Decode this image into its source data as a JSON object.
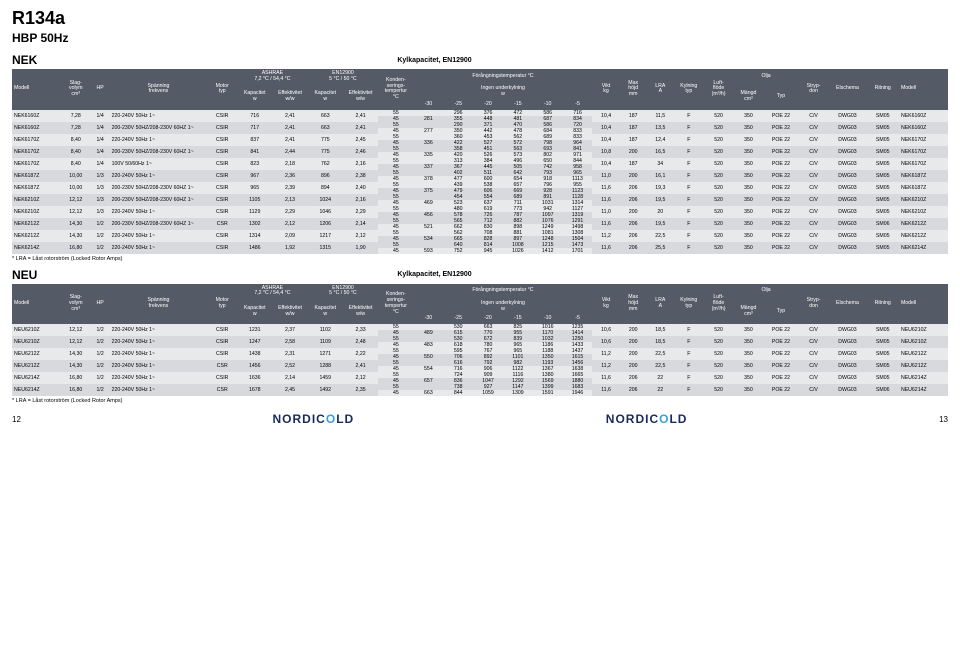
{
  "title": "R134a",
  "subtitle": "HBP 50Hz",
  "kylcap_label": "Kylkapacitet, EN12900",
  "footnote": "* LRA = Låst rotorström (Locked Rotor Amps)",
  "page_left": "12",
  "page_right": "13",
  "logo": "NORDICOLD",
  "headers": {
    "modell": "Modell",
    "slag": "Slag-\nvolym\ncm³",
    "hp": "HP",
    "span": "Spänning\nfrekvens",
    "motor": "Motor\ntyp",
    "ashrae": "ASHRAE\n7,2 °C / 54,4 °C",
    "en12900": "EN12900\n5 °C / 50 °C",
    "kap": "Kapacitet\nw",
    "eff": "Effektivitet\nw/w",
    "kond": "Konden-\nserings-\ntempertur\n°C",
    "forang_top": "Förångningstemperatur °C",
    "forang_sub": "Ingen underkylning\nw",
    "t30": "-30",
    "t25": "-25",
    "t20": "-20",
    "t15": "-15",
    "t10": "-10",
    "t5": "-5",
    "vikt": "Vikt\nkg",
    "max": "Max\nhöjd\nmm",
    "lra": "LRA\nA",
    "kyln": "Kylning\ntyp",
    "luft": "Luft-\nflöde\n(m³/h)",
    "mangd": "Mängd\ncm³",
    "olja": "Olja",
    "otyp": "Typ",
    "stryp": "Stryp-\ndon",
    "elsch": "Elschema",
    "ritn": "Ritning"
  },
  "sections": [
    {
      "name": "NEK",
      "rows": [
        {
          "alt": false,
          "m": "NEK6160Z",
          "slag": "7,28",
          "hp": "1/4",
          "span": "220-240V 50Hz 1~",
          "motor": "CSIR",
          "k1": "716",
          "e1": "2,41",
          "k2": "663",
          "e2": "2,41",
          "cap": [
            [
              "55",
              "",
              "296",
              "376",
              "472",
              "586",
              "716"
            ],
            [
              "45",
              "281",
              "355",
              "448",
              "481",
              "687",
              "834"
            ]
          ],
          "vikt": "10,4",
          "max": "187",
          "lra": "11,5",
          "kyln": "F",
          "luft": "520",
          "mangd": "350",
          "otyp": "POE 22",
          "stryp": "C/V",
          "elsch": "DWG03",
          "ritn": "SM05",
          "m2": "NEK6160Z"
        },
        {
          "alt": true,
          "m": "NEK6160Z",
          "slag": "7,28",
          "hp": "1/4",
          "span": "200-230V 50HZ/208-230V 60HZ 1~",
          "motor": "CSIR",
          "k1": "717",
          "e1": "2,41",
          "k2": "663",
          "e2": "2,41",
          "cap": [
            [
              "55",
              "",
              "290",
              "371",
              "470",
              "586",
              "720"
            ],
            [
              "45",
              "277",
              "350",
              "442",
              "478",
              "684",
              "833"
            ]
          ],
          "vikt": "10,4",
          "max": "187",
          "lra": "13,5",
          "kyln": "F",
          "luft": "520",
          "mangd": "350",
          "otyp": "POE 22",
          "stryp": "C/V",
          "elsch": "DWG03",
          "ritn": "SM05",
          "m2": "NEK6160Z"
        },
        {
          "alt": false,
          "m": "NEK6170Z",
          "slag": "8,40",
          "hp": "1/4",
          "span": "220-240V 50Hz 1~",
          "motor": "CSIR",
          "k1": "837",
          "e1": "2,41",
          "k2": "775",
          "e2": "2,45",
          "cap": [
            [
              "55",
              "",
              "360",
              "453",
              "562",
              "689",
              "833"
            ],
            [
              "45",
              "336",
              "422",
              "527",
              "572",
              "798",
              "964"
            ]
          ],
          "vikt": "10,4",
          "max": "187",
          "lra": "12,4",
          "kyln": "F",
          "luft": "520",
          "mangd": "350",
          "otyp": "POE 22",
          "stryp": "C/V",
          "elsch": "DWG03",
          "ritn": "SM05",
          "m2": "NEK6170Z"
        },
        {
          "alt": true,
          "m": "NEK6170Z",
          "slag": "8,40",
          "hp": "1/4",
          "span": "200-230V 50HZ/208-230V 60HZ 1~",
          "motor": "CSIR",
          "k1": "841",
          "e1": "2,44",
          "k2": "775",
          "e2": "2,46",
          "cap": [
            [
              "55",
              "",
              "358",
              "451",
              "563",
              "693",
              "841"
            ],
            [
              "45",
              "335",
              "420",
              "526",
              "573",
              "802",
              "971"
            ]
          ],
          "vikt": "10,8",
          "max": "200",
          "lra": "16,5",
          "kyln": "F",
          "luft": "520",
          "mangd": "350",
          "otyp": "POE 22",
          "stryp": "C/V",
          "elsch": "DWG03",
          "ritn": "SM05",
          "m2": "NEK6170Z"
        },
        {
          "alt": false,
          "m": "NEK6170Z",
          "slag": "8,40",
          "hp": "1/4",
          "span": "100V 50/60Hz 1~",
          "motor": "CSIR",
          "k1": "823",
          "e1": "2,18",
          "k2": "762",
          "e2": "2,16",
          "cap": [
            [
              "55",
              "",
              "313",
              "384",
              "496",
              "650",
              "844"
            ],
            [
              "45",
              "337",
              "367",
              "445",
              "505",
              "742",
              "958"
            ]
          ],
          "vikt": "10,4",
          "max": "187",
          "lra": "34",
          "kyln": "F",
          "luft": "520",
          "mangd": "350",
          "otyp": "POE 22",
          "stryp": "C/V",
          "elsch": "DWG03",
          "ritn": "SM05",
          "m2": "NEK6170Z"
        },
        {
          "alt": true,
          "m": "NEK6187Z",
          "slag": "10,00",
          "hp": "1/3",
          "span": "220-240V 50Hz 1~",
          "motor": "CSIR",
          "k1": "967",
          "e1": "2,36",
          "k2": "896",
          "e2": "2,38",
          "cap": [
            [
              "55",
              "",
              "402",
              "511",
              "642",
              "793",
              "965"
            ],
            [
              "45",
              "378",
              "477",
              "600",
              "654",
              "918",
              "1113"
            ]
          ],
          "vikt": "11,0",
          "max": "200",
          "lra": "16,1",
          "kyln": "F",
          "luft": "520",
          "mangd": "350",
          "otyp": "POE 22",
          "stryp": "C/V",
          "elsch": "DWG03",
          "ritn": "SM05",
          "m2": "NEK6187Z"
        },
        {
          "alt": false,
          "m": "NEK6187Z",
          "slag": "10,00",
          "hp": "1/3",
          "span": "200-230V 50HZ/208-230V 60HZ 1~",
          "motor": "CSIR",
          "k1": "965",
          "e1": "2,39",
          "k2": "894",
          "e2": "2,40",
          "cap": [
            [
              "55",
              "",
              "439",
              "538",
              "657",
              "796",
              "955"
            ],
            [
              "45",
              "375",
              "479",
              "606",
              "669",
              "928",
              "1123"
            ]
          ],
          "vikt": "11,6",
          "max": "206",
          "lra": "19,3",
          "kyln": "F",
          "luft": "520",
          "mangd": "350",
          "otyp": "POE 22",
          "stryp": "C/V",
          "elsch": "DWG03",
          "ritn": "SM05",
          "m2": "NEK6187Z"
        },
        {
          "alt": true,
          "m": "NEK6210Z",
          "slag": "12,12",
          "hp": "1/3",
          "span": "200-230V 50HZ/208-230V 60HZ 1~",
          "motor": "CSIR",
          "k1": "1105",
          "e1": "2,13",
          "k2": "1024",
          "e2": "2,16",
          "cap": [
            [
              "55",
              "",
              "454",
              "554",
              "689",
              "891",
              "1128"
            ],
            [
              "45",
              "469",
              "523",
              "637",
              "711",
              "1031",
              "1314"
            ]
          ],
          "vikt": "11,6",
          "max": "206",
          "lra": "19,5",
          "kyln": "F",
          "luft": "520",
          "mangd": "350",
          "otyp": "POE 22",
          "stryp": "C/V",
          "elsch": "DWG03",
          "ritn": "SM05",
          "m2": "NEK6210Z"
        },
        {
          "alt": false,
          "m": "NEK6210Z",
          "slag": "12,12",
          "hp": "1/3",
          "span": "220-240V 50Hz 1~",
          "motor": "CSIR",
          "k1": "1129",
          "e1": "2,29",
          "k2": "1046",
          "e2": "2,29",
          "cap": [
            [
              "55",
              "",
              "480",
              "619",
              "773",
              "942",
              "1127"
            ],
            [
              "45",
              "456",
              "578",
              "726",
              "787",
              "1097",
              "1319"
            ]
          ],
          "vikt": "11,0",
          "max": "200",
          "lra": "20",
          "kyln": "F",
          "luft": "520",
          "mangd": "350",
          "otyp": "POE 22",
          "stryp": "C/V",
          "elsch": "DWG03",
          "ritn": "SM05",
          "m2": "NEK6210Z"
        },
        {
          "alt": true,
          "m": "NEK6212Z",
          "slag": "14,30",
          "hp": "1/2",
          "span": "200-230V 50HZ/208-230V 60HZ 1~",
          "motor": "CSR",
          "k1": "1302",
          "e1": "2,12",
          "k2": "1206",
          "e2": "2,14",
          "cap": [
            [
              "55",
              "",
              "565",
              "712",
              "882",
              "1076",
              "1291"
            ],
            [
              "45",
              "521",
              "662",
              "830",
              "898",
              "1249",
              "1498"
            ]
          ],
          "vikt": "11,6",
          "max": "206",
          "lra": "19,5",
          "kyln": "F",
          "luft": "520",
          "mangd": "350",
          "otyp": "POE 22",
          "stryp": "C/V",
          "elsch": "DWG03",
          "ritn": "SM06",
          "m2": "NEK6212Z"
        },
        {
          "alt": false,
          "m": "NEK6212Z",
          "slag": "14,30",
          "hp": "1/2",
          "span": "220-240V 50Hz 1~",
          "motor": "CSIR",
          "k1": "1314",
          "e1": "2,09",
          "k2": "1217",
          "e2": "2,12",
          "cap": [
            [
              "55",
              "",
              "562",
              "708",
              "881",
              "1081",
              "1308"
            ],
            [
              "45",
              "534",
              "665",
              "828",
              "897",
              "1248",
              "1504"
            ]
          ],
          "vikt": "11,2",
          "max": "206",
          "lra": "22,5",
          "kyln": "F",
          "luft": "520",
          "mangd": "350",
          "otyp": "POE 22",
          "stryp": "C/V",
          "elsch": "DWG03",
          "ritn": "SM05",
          "m2": "NEK6212Z"
        },
        {
          "alt": true,
          "m": "NEK6214Z",
          "slag": "16,80",
          "hp": "1/2",
          "span": "220-240V 50Hz 1~",
          "motor": "CSIR",
          "k1": "1486",
          "e1": "1,92",
          "k2": "1315",
          "e2": "1,90",
          "cap": [
            [
              "55",
              "",
              "640",
              "814",
              "1008",
              "1215",
              "1473"
            ],
            [
              "45",
              "593",
              "752",
              "945",
              "1026",
              "1412",
              "1701"
            ]
          ],
          "vikt": "11,6",
          "max": "206",
          "lra": "25,5",
          "kyln": "F",
          "luft": "520",
          "mangd": "350",
          "otyp": "POE 22",
          "stryp": "C/V",
          "elsch": "DWG03",
          "ritn": "SM05",
          "m2": "NEK6214Z"
        }
      ]
    },
    {
      "name": "NEU",
      "rows": [
        {
          "alt": false,
          "m": "NEU6210Z",
          "slag": "12,12",
          "hp": "1/2",
          "span": "220-240V 50Hz 1~",
          "motor": "CSIR",
          "k1": "1231",
          "e1": "2,37",
          "k2": "1102",
          "e2": "2,33",
          "cap": [
            [
              "55",
              "",
              "530",
              "663",
              "825",
              "1016",
              "1235"
            ],
            [
              "45",
              "489",
              "615",
              "770",
              "955",
              "1170",
              "1414"
            ]
          ],
          "vikt": "10,6",
          "max": "200",
          "lra": "18,5",
          "kyln": "F",
          "luft": "520",
          "mangd": "350",
          "otyp": "POE 22",
          "stryp": "C/V",
          "elsch": "DWG03",
          "ritn": "SM05",
          "m2": "NEU6210Z"
        },
        {
          "alt": true,
          "m": "NEU6210Z",
          "slag": "12,12",
          "hp": "1/2",
          "span": "220-240V 50Hz 1~",
          "motor": "CSIR",
          "k1": "1247",
          "e1": "2,58",
          "k2": "1109",
          "e2": "2,48",
          "cap": [
            [
              "55",
              "",
              "530",
              "672",
              "839",
              "1032",
              "1250"
            ],
            [
              "45",
              "483",
              "618",
              "780",
              "965",
              "1186",
              "1433"
            ]
          ],
          "vikt": "10,6",
          "max": "200",
          "lra": "18,5",
          "kyln": "F",
          "luft": "520",
          "mangd": "350",
          "otyp": "POE 22",
          "stryp": "C/V",
          "elsch": "DWG03",
          "ritn": "SM05",
          "m2": "NEU6210Z"
        },
        {
          "alt": false,
          "m": "NEU6212Z",
          "slag": "14,30",
          "hp": "1/2",
          "span": "220-240V 50Hz 1~",
          "motor": "CSIR",
          "k1": "1438",
          "e1": "2,31",
          "k2": "1271",
          "e2": "2,22",
          "cap": [
            [
              "55",
              "",
              "595",
              "767",
              "965",
              "1188",
              "1437"
            ],
            [
              "45",
              "550",
              "706",
              "892",
              "1101",
              "1350",
              "1615"
            ]
          ],
          "vikt": "11,2",
          "max": "200",
          "lra": "22,5",
          "kyln": "F",
          "luft": "520",
          "mangd": "350",
          "otyp": "POE 22",
          "stryp": "C/V",
          "elsch": "DWG03",
          "ritn": "SM05",
          "m2": "NEU6212Z"
        },
        {
          "alt": true,
          "m": "NEU6212Z",
          "slag": "14,30",
          "hp": "1/2",
          "span": "220-240V 50Hz 1~",
          "motor": "CSR",
          "k1": "1456",
          "e1": "2,52",
          "k2": "1288",
          "e2": "2,41",
          "cap": [
            [
              "55",
              "",
              "616",
              "792",
              "982",
              "1193",
              "1456"
            ],
            [
              "45",
              "554",
              "716",
              "906",
              "1122",
              "1367",
              "1638"
            ]
          ],
          "vikt": "11,2",
          "max": "200",
          "lra": "22,5",
          "kyln": "F",
          "luft": "520",
          "mangd": "350",
          "otyp": "POE 22",
          "stryp": "C/V",
          "elsch": "DWG03",
          "ritn": "SM05",
          "m2": "NEU6212Z"
        },
        {
          "alt": false,
          "m": "NEU6214Z",
          "slag": "16,80",
          "hp": "1/2",
          "span": "220-240V 50Hz 1~",
          "motor": "CSIR",
          "k1": "1636",
          "e1": "2,14",
          "k2": "1459",
          "e2": "2,12",
          "cap": [
            [
              "55",
              "",
              "724",
              "909",
              "1116",
              "1380",
              "1665"
            ],
            [
              "45",
              "657",
              "836",
              "1047",
              "1292",
              "1569",
              "1880"
            ]
          ],
          "vikt": "11,6",
          "max": "206",
          "lra": "22",
          "kyln": "F",
          "luft": "520",
          "mangd": "350",
          "otyp": "POE 22",
          "stryp": "C/V",
          "elsch": "DWG03",
          "ritn": "SM05",
          "m2": "NEU6214Z"
        },
        {
          "alt": true,
          "m": "NEU6214Z",
          "slag": "16,80",
          "hp": "1/2",
          "span": "220-240V 50Hz 1~",
          "motor": "CSR",
          "k1": "1678",
          "e1": "2,45",
          "k2": "1492",
          "e2": "2,35",
          "cap": [
            [
              "55",
              "",
              "738",
              "927",
              "1147",
              "1399",
              "1683"
            ],
            [
              "45",
              "663",
              "844",
              "1059",
              "1309",
              "1591",
              "1946"
            ]
          ],
          "vikt": "11,6",
          "max": "206",
          "lra": "22",
          "kyln": "F",
          "luft": "520",
          "mangd": "350",
          "otyp": "POE 22",
          "stryp": "C/V",
          "elsch": "DWG03",
          "ritn": "SM06",
          "m2": "NEU6214Z"
        }
      ]
    }
  ]
}
